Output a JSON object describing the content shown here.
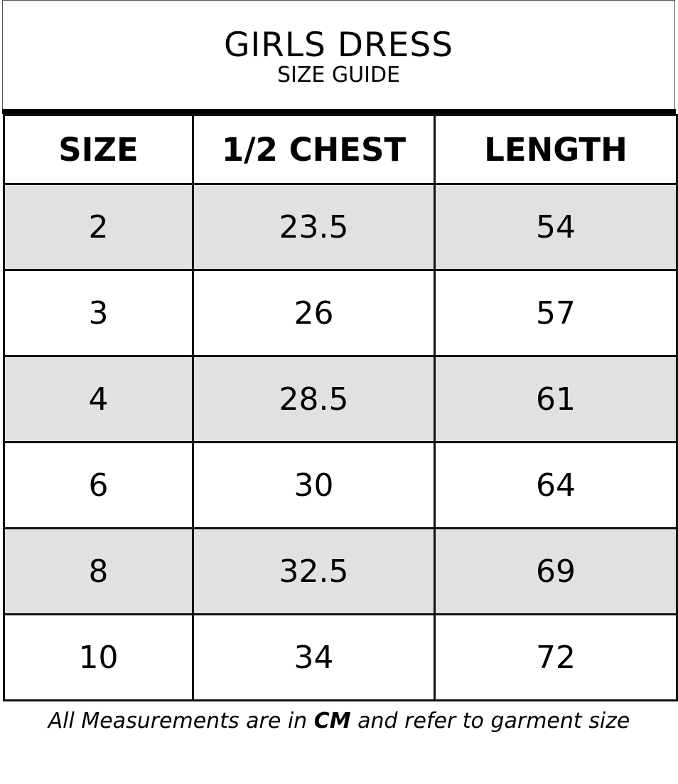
{
  "header": {
    "title": "GIRLS DRESS",
    "subtitle": "SIZE GUIDE"
  },
  "table": {
    "columns": [
      "SIZE",
      "1/2 CHEST",
      "LENGTH"
    ],
    "rows": [
      [
        "2",
        "23.5",
        "54"
      ],
      [
        "3",
        "26",
        "57"
      ],
      [
        "4",
        "28.5",
        "61"
      ],
      [
        "6",
        "30",
        "64"
      ],
      [
        "8",
        "32.5",
        "69"
      ],
      [
        "10",
        "34",
        "72"
      ]
    ]
  },
  "footer": {
    "pre": "All Measurements are in ",
    "unit": "CM",
    "post": " and refer to garment size"
  },
  "colors": {
    "shade": "#e0e2e1",
    "border": "#111111"
  }
}
